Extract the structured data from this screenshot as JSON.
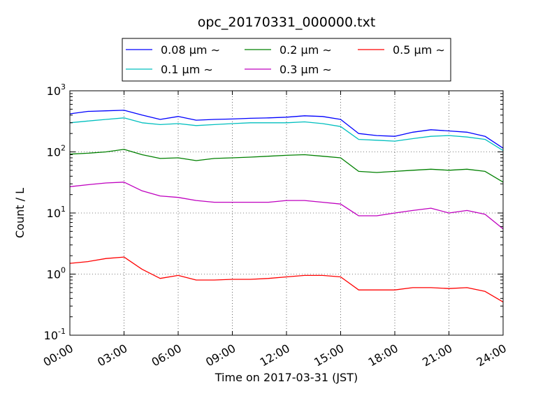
{
  "chart_data": {
    "type": "line",
    "title": "opc_20170331_000000.txt",
    "xlabel": "Time on 2017-03-31 (JST)",
    "ylabel": "Count / L",
    "yscale": "log",
    "ylim": [
      0.1,
      1000
    ],
    "xlim": [
      "00:00",
      "24:00"
    ],
    "grid": true,
    "legend_position": "top-center, above plot",
    "xtick_labels": [
      "00:00",
      "03:00",
      "06:00",
      "09:00",
      "12:00",
      "15:00",
      "18:00",
      "21:00",
      "24:00"
    ],
    "ytick_labels": [
      {
        "base": "10",
        "exp": "-1"
      },
      {
        "base": "10",
        "exp": "0"
      },
      {
        "base": "10",
        "exp": "1"
      },
      {
        "base": "10",
        "exp": "2"
      },
      {
        "base": "10",
        "exp": "3"
      }
    ],
    "x": [
      "00:00",
      "01:00",
      "02:00",
      "03:00",
      "04:00",
      "05:00",
      "06:00",
      "07:00",
      "08:00",
      "09:00",
      "10:00",
      "11:00",
      "12:00",
      "13:00",
      "14:00",
      "15:00",
      "16:00",
      "17:00",
      "18:00",
      "19:00",
      "20:00",
      "21:00",
      "22:00",
      "23:00",
      "24:00"
    ],
    "series": [
      {
        "name": "0.08 μm ∼",
        "color": "#0000ff",
        "values": [
          420,
          460,
          470,
          480,
          400,
          340,
          380,
          330,
          340,
          345,
          355,
          360,
          370,
          390,
          380,
          340,
          200,
          185,
          180,
          210,
          230,
          220,
          210,
          180,
          115
        ]
      },
      {
        "name": "0.1 μm ∼",
        "color": "#00bfbf",
        "values": [
          300,
          320,
          340,
          360,
          300,
          280,
          290,
          270,
          280,
          290,
          300,
          300,
          300,
          310,
          290,
          260,
          160,
          155,
          150,
          165,
          180,
          185,
          175,
          160,
          105
        ]
      },
      {
        "name": "0.2 μm ∼",
        "color": "#008000",
        "values": [
          92,
          95,
          100,
          110,
          90,
          78,
          80,
          72,
          78,
          80,
          82,
          85,
          88,
          90,
          85,
          80,
          48,
          46,
          48,
          50,
          52,
          50,
          52,
          48,
          32
        ]
      },
      {
        "name": "0.3 μm ∼",
        "color": "#bf00bf",
        "values": [
          27,
          29,
          31,
          32,
          23,
          19,
          18,
          16,
          15,
          15,
          15,
          15,
          16,
          16,
          15,
          14,
          9,
          9,
          10,
          11,
          12,
          10,
          11,
          9.5,
          5.5
        ]
      },
      {
        "name": "0.5 μm ∼",
        "color": "#ff0000",
        "values": [
          1.5,
          1.6,
          1.8,
          1.9,
          1.2,
          0.85,
          0.95,
          0.8,
          0.8,
          0.82,
          0.82,
          0.85,
          0.9,
          0.95,
          0.95,
          0.9,
          0.55,
          0.55,
          0.55,
          0.6,
          0.6,
          0.58,
          0.6,
          0.52,
          0.35
        ]
      }
    ]
  }
}
